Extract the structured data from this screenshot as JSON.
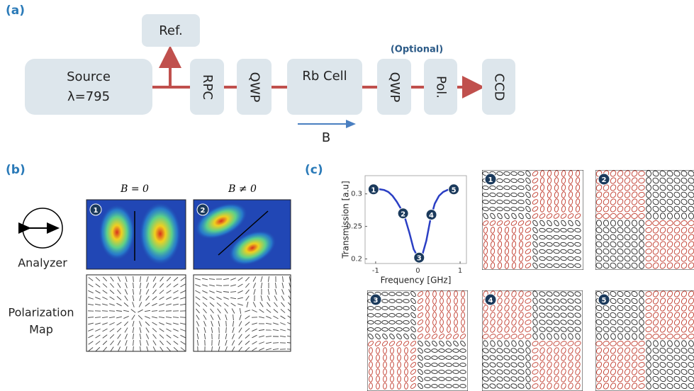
{
  "panel_a": {
    "label": "(a)",
    "source_line1": "Source",
    "source_line2": "λ=795",
    "ref": "Ref.",
    "components": [
      "RPC",
      "QWP",
      "Rb Cell",
      "QWP",
      "Pol.",
      "CCD"
    ],
    "optional": "(Optional)",
    "field": "B"
  },
  "panel_b": {
    "label": "(b)",
    "columns": [
      "B = 0",
      "B ≠ 0"
    ],
    "image_markers": [
      "1",
      "2"
    ],
    "analyzer": "Analyzer",
    "map_label": [
      "Polarization",
      "Map"
    ]
  },
  "panel_c": {
    "label": "(c)",
    "map_markers": [
      "1",
      "2",
      "3",
      "4",
      "5"
    ],
    "chart": {
      "type": "line",
      "xlabel": "Frequency [GHz]",
      "ylabel": "Transmission [a.u]",
      "color": "#2b3fc4",
      "x": [
        -1.1,
        -1.0,
        -0.9,
        -0.8,
        -0.7,
        -0.6,
        -0.5,
        -0.4,
        -0.3,
        -0.2,
        -0.1,
        0,
        0.1,
        0.2,
        0.3,
        0.4,
        0.5,
        0.6,
        0.7,
        0.8,
        0.9,
        0.95
      ],
      "values": [
        0.307,
        0.308,
        0.307,
        0.306,
        0.303,
        0.297,
        0.288,
        0.277,
        0.262,
        0.24,
        0.215,
        0.203,
        0.205,
        0.228,
        0.262,
        0.285,
        0.297,
        0.303,
        0.306,
        0.308,
        0.305,
        0.304
      ],
      "xlim": [
        -1.25,
        1.15
      ],
      "ylim": [
        0.193,
        0.328
      ],
      "xticks": [
        -1,
        0,
        1
      ],
      "yticks": [
        0.2,
        0.25,
        0.3
      ],
      "markers": [
        {
          "label": "1",
          "x": -1.05,
          "y": 0.307
        },
        {
          "label": "2",
          "x": -0.35,
          "y": 0.27
        },
        {
          "label": "3",
          "x": 0.03,
          "y": 0.202
        },
        {
          "label": "4",
          "x": 0.32,
          "y": 0.268
        },
        {
          "label": "5",
          "x": 0.85,
          "y": 0.307
        }
      ]
    }
  }
}
